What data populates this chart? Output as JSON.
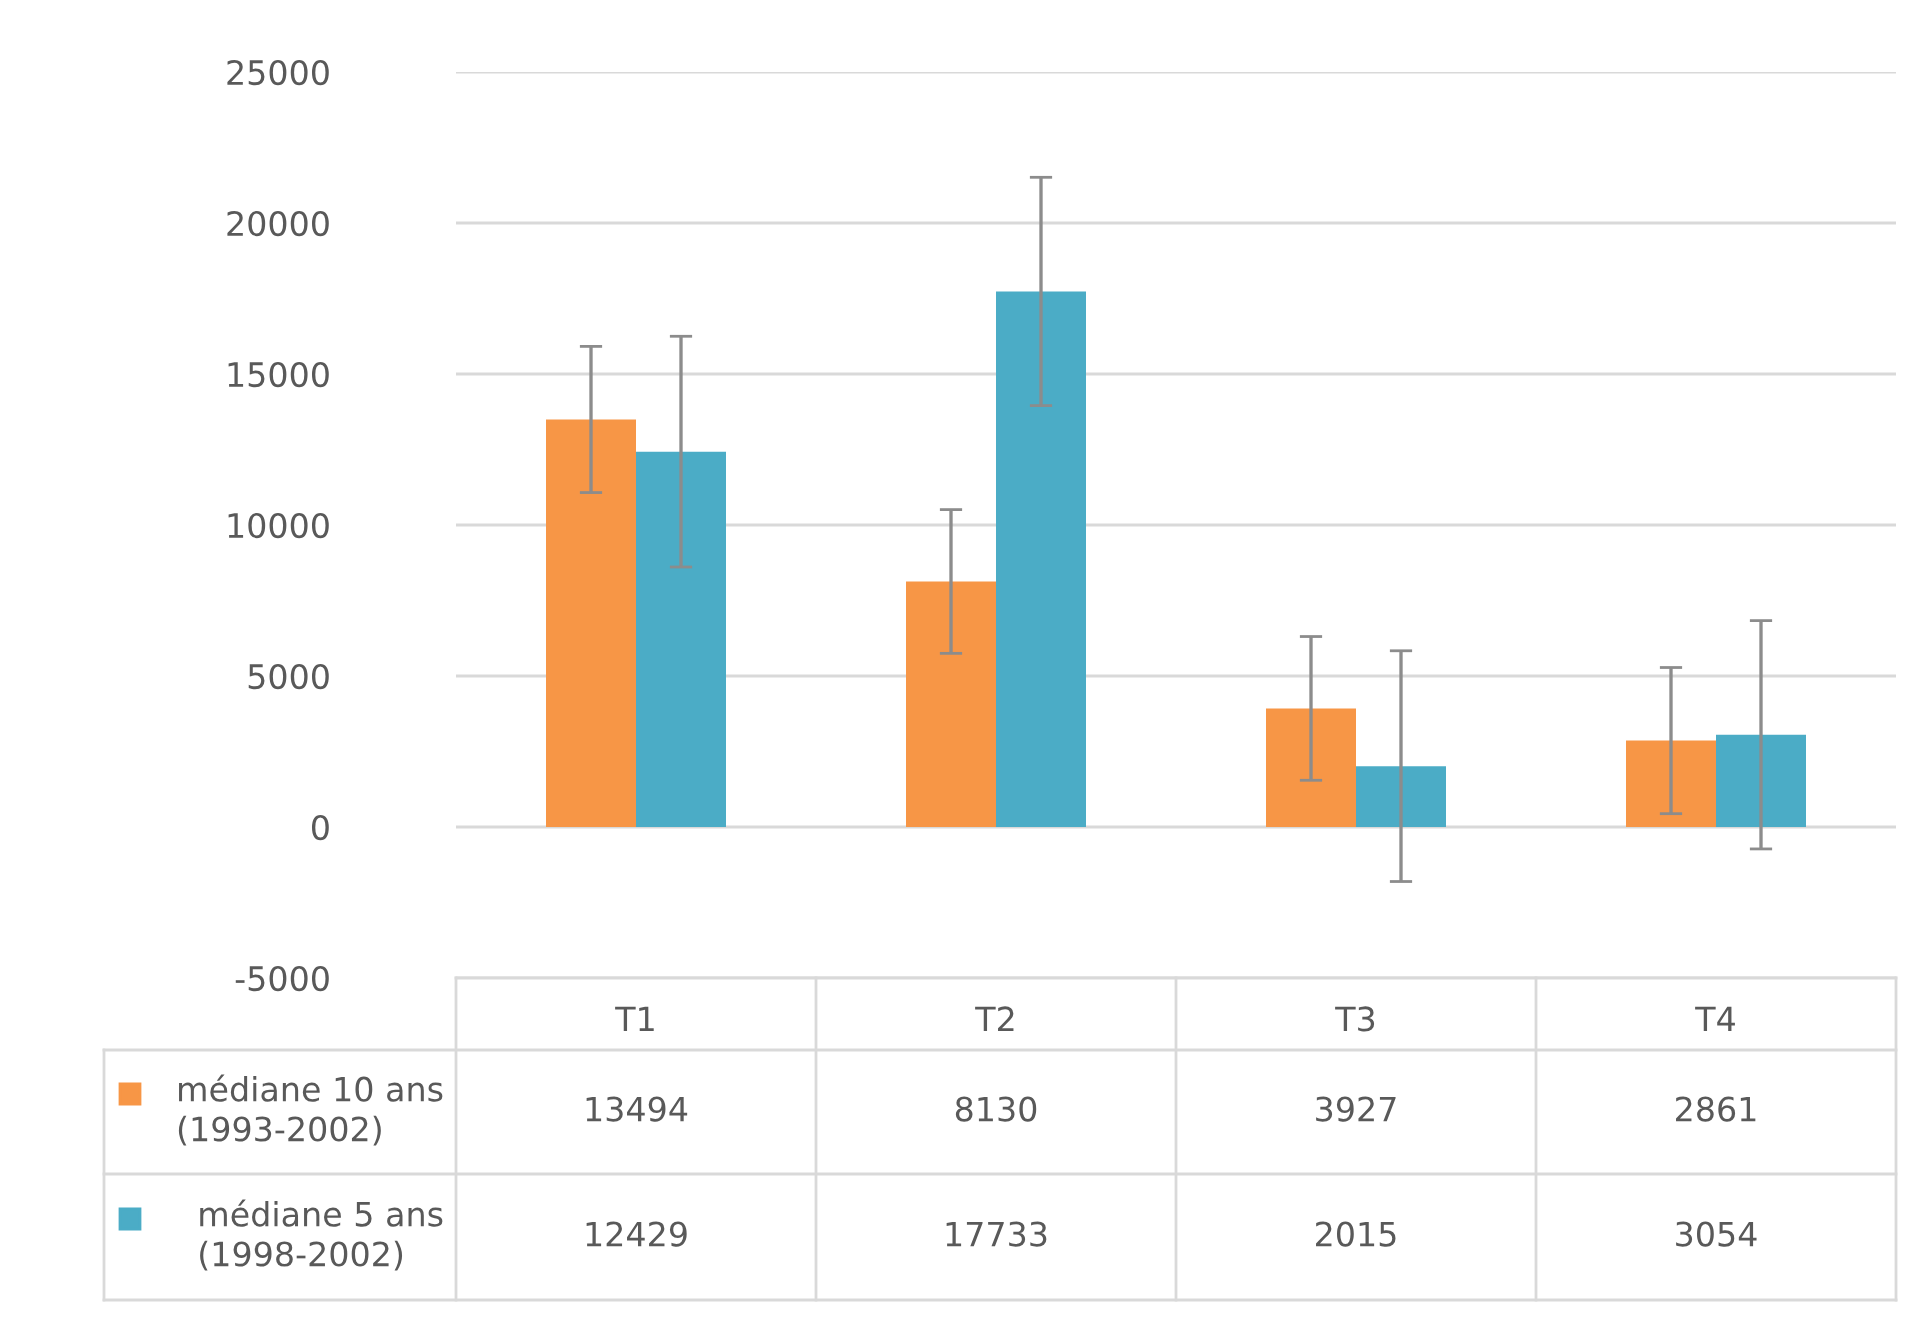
{
  "chart_data": {
    "type": "bar",
    "categories": [
      "T1",
      "T2",
      "T3",
      "T4"
    ],
    "series": [
      {
        "name": "médiane 10 ans\n(1993-2002)",
        "color": "#f79646",
        "values": [
          13494,
          8130,
          3927,
          2861
        ],
        "errors": [
          2420,
          2380,
          2380,
          2420
        ]
      },
      {
        "name": "médiane 5 ans\n(1998-2002)",
        "color": "#4bacc6",
        "values": [
          12429,
          17733,
          2015,
          3054
        ],
        "errors": [
          3820,
          3780,
          3820,
          3780
        ]
      }
    ],
    "ylim": [
      -5000,
      25000
    ],
    "yticks": [
      -5000,
      0,
      5000,
      10000,
      15000,
      20000,
      25000
    ],
    "grid": "y",
    "data_labels": true,
    "legend": "bottom"
  }
}
